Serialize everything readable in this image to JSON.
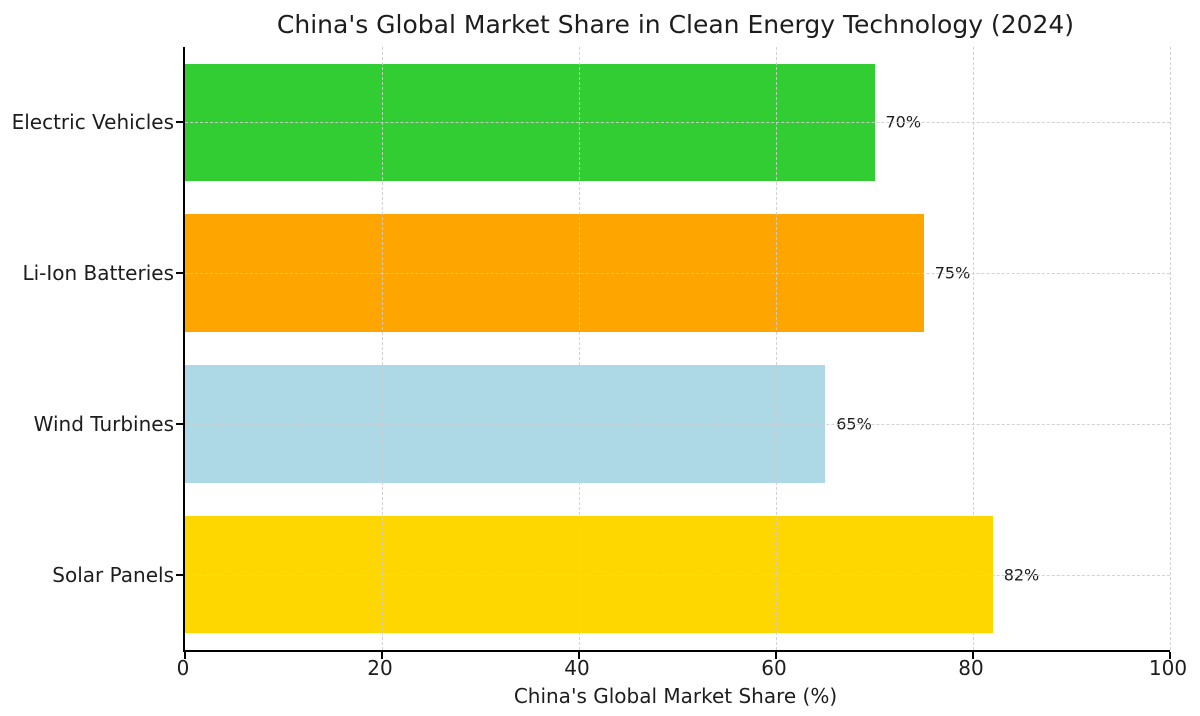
{
  "chart_data": {
    "type": "bar",
    "orientation": "horizontal",
    "title": "China's Global Market Share in Clean Energy Technology (2024)",
    "xlabel": "China's Global Market Share (%)",
    "xlim": [
      0,
      100
    ],
    "xticks": [
      0,
      20,
      40,
      60,
      80,
      100
    ],
    "grid": "dashed, both axes, drawn over bars",
    "legend": "none",
    "categories": [
      "Electric Vehicles",
      "Li-Ion Batteries",
      "Wind Turbines",
      "Solar Panels"
    ],
    "values": [
      70,
      75,
      65,
      82
    ],
    "value_labels": [
      "70%",
      "75%",
      "65%",
      "82%"
    ],
    "bar_colors": [
      "#32CD32",
      "#FFA500",
      "#ADD8E6",
      "#FFD700"
    ],
    "colors": {
      "axis": "#000000",
      "grid": "#cdcdcd",
      "text": "#1d1d1d",
      "background": "#ffffff"
    }
  }
}
